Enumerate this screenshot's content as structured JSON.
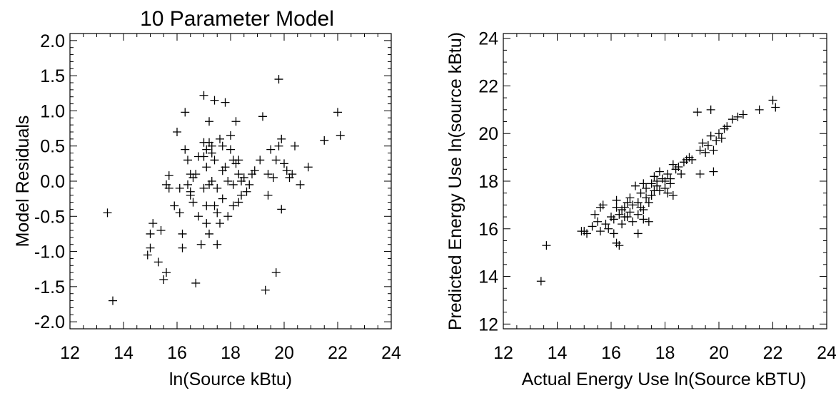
{
  "chart_data": [
    {
      "type": "scatter",
      "title": "10 Parameter Model",
      "xlabel": "ln(Source kBtu)",
      "ylabel": "Model Residuals",
      "xlim": [
        12,
        24
      ],
      "ylim": [
        -2.1,
        2.1
      ],
      "xticks": [
        12,
        14,
        16,
        18,
        20,
        22,
        24
      ],
      "xtick_labels": [
        "12",
        "14",
        "16",
        "18",
        "20",
        "22",
        "24"
      ],
      "yticks": [
        -2.0,
        -1.5,
        -1.0,
        -0.5,
        0.0,
        0.5,
        1.0,
        1.5,
        2.0
      ],
      "ytick_labels": [
        "-2.0",
        "-1.5",
        "-1.0",
        "-0.5",
        "0.0",
        "0.5",
        "1.0",
        "1.5",
        "2.0"
      ],
      "marker": "+",
      "x": [
        13.4,
        13.6,
        14.9,
        15.0,
        15.0,
        15.1,
        15.3,
        15.4,
        15.5,
        15.6,
        15.6,
        15.7,
        15.7,
        15.9,
        16.0,
        16.1,
        16.1,
        16.2,
        16.2,
        16.3,
        16.3,
        16.4,
        16.4,
        16.5,
        16.5,
        16.5,
        16.6,
        16.6,
        16.7,
        16.7,
        16.8,
        16.8,
        16.9,
        17.0,
        17.0,
        17.0,
        17.0,
        17.1,
        17.1,
        17.1,
        17.1,
        17.2,
        17.2,
        17.2,
        17.2,
        17.3,
        17.3,
        17.3,
        17.4,
        17.4,
        17.4,
        17.5,
        17.5,
        17.5,
        17.6,
        17.6,
        17.7,
        17.7,
        17.7,
        17.8,
        17.8,
        17.9,
        17.9,
        18.0,
        18.0,
        18.1,
        18.1,
        18.1,
        18.2,
        18.2,
        18.3,
        18.3,
        18.3,
        18.4,
        18.4,
        18.5,
        18.6,
        18.7,
        18.8,
        18.9,
        19.1,
        19.2,
        19.3,
        19.4,
        19.4,
        19.5,
        19.6,
        19.7,
        19.7,
        19.8,
        19.8,
        19.9,
        19.9,
        20.0,
        20.1,
        20.2,
        20.3,
        20.4,
        20.6,
        20.9,
        21.5,
        22.0,
        22.1
      ],
      "y": [
        -0.45,
        -1.7,
        -1.05,
        -0.95,
        -0.75,
        -0.6,
        -1.15,
        -0.7,
        -1.4,
        -1.3,
        -0.05,
        -0.1,
        0.08,
        -0.35,
        0.7,
        -0.1,
        -0.45,
        -0.75,
        -0.95,
        0.45,
        0.98,
        -0.05,
        0.3,
        -0.15,
        0.1,
        -0.2,
        -0.3,
        0.05,
        -1.45,
        0.1,
        -0.5,
        0.35,
        -0.9,
        0.35,
        0.55,
        1.22,
        -0.1,
        0.45,
        0.2,
        -0.35,
        -0.6,
        0.85,
        0.55,
        -0.05,
        -0.75,
        0.5,
        0.4,
        0.0,
        0.3,
        -0.35,
        1.15,
        -0.1,
        -0.45,
        -0.9,
        0.6,
        -0.6,
        -0.25,
        0.5,
        0.15,
        1.12,
        0.2,
        0.0,
        -0.5,
        0.65,
        0.45,
        0.3,
        -0.05,
        -0.35,
        0.25,
        0.85,
        0.3,
        -0.3,
        0.1,
        0.0,
        -0.2,
        0.05,
        -0.15,
        -0.05,
        0.1,
        0.15,
        0.3,
        0.92,
        -1.55,
        0.1,
        -0.2,
        0.45,
        0.05,
        0.3,
        -1.3,
        0.5,
        1.45,
        0.6,
        -0.4,
        0.25,
        0.15,
        0.05,
        0.1,
        0.5,
        -0.05,
        0.2,
        0.58,
        0.98,
        0.65
      ]
    },
    {
      "type": "scatter",
      "title": "",
      "xlabel": "Actual Energy Use ln(Source kBTU)",
      "ylabel": "Predicted Energy Use ln(source kBtu)",
      "xlim": [
        12,
        24
      ],
      "ylim": [
        11.8,
        24.2
      ],
      "xticks": [
        12,
        14,
        16,
        18,
        20,
        22,
        24
      ],
      "xtick_labels": [
        "12",
        "14",
        "16",
        "18",
        "20",
        "22",
        "24"
      ],
      "yticks": [
        12,
        14,
        16,
        18,
        20,
        22,
        24
      ],
      "ytick_labels": [
        "12",
        "14",
        "16",
        "18",
        "20",
        "22",
        "24"
      ],
      "marker": "+",
      "x": [
        13.4,
        13.6,
        14.9,
        15.0,
        15.1,
        15.3,
        15.4,
        15.5,
        15.6,
        15.6,
        15.7,
        15.8,
        15.9,
        16.0,
        16.1,
        16.1,
        16.2,
        16.2,
        16.2,
        16.3,
        16.3,
        16.4,
        16.4,
        16.5,
        16.5,
        16.6,
        16.6,
        16.7,
        16.7,
        16.8,
        16.8,
        16.9,
        17.0,
        17.0,
        17.0,
        17.1,
        17.1,
        17.2,
        17.2,
        17.2,
        17.3,
        17.3,
        17.4,
        17.4,
        17.5,
        17.5,
        17.6,
        17.6,
        17.7,
        17.7,
        17.8,
        17.8,
        17.9,
        18.0,
        18.0,
        18.1,
        18.1,
        18.2,
        18.2,
        18.3,
        18.3,
        18.4,
        18.5,
        18.6,
        18.7,
        18.8,
        18.9,
        19.0,
        19.2,
        19.3,
        19.3,
        19.4,
        19.5,
        19.6,
        19.7,
        19.7,
        19.8,
        19.8,
        19.9,
        20.0,
        20.1,
        20.2,
        20.3,
        20.5,
        20.7,
        20.9,
        21.5,
        22.0,
        22.1
      ],
      "y": [
        13.8,
        15.3,
        15.9,
        15.9,
        15.8,
        16.1,
        16.6,
        16.3,
        16.9,
        15.9,
        17.0,
        16.2,
        16.0,
        16.5,
        15.8,
        16.4,
        15.4,
        16.9,
        17.2,
        15.3,
        16.6,
        16.2,
        16.8,
        16.5,
        16.9,
        17.1,
        16.5,
        17.3,
        16.7,
        17.0,
        16.3,
        17.8,
        16.6,
        17.1,
        15.8,
        16.9,
        17.5,
        16.8,
        17.9,
        16.4,
        17.3,
        17.7,
        16.3,
        17.1,
        17.4,
        17.9,
        18.2,
        17.6,
        18.0,
        17.8,
        18.4,
        17.6,
        18.1,
        17.7,
        18.0,
        18.3,
        17.5,
        18.1,
        17.9,
        18.7,
        17.4,
        18.5,
        18.6,
        18.3,
        18.8,
        18.9,
        19.0,
        18.9,
        20.9,
        19.3,
        18.3,
        19.6,
        19.2,
        19.5,
        19.9,
        21.0,
        19.3,
        18.4,
        19.7,
        20.0,
        19.8,
        20.2,
        20.3,
        20.6,
        20.7,
        20.8,
        21.0,
        21.4,
        21.1
      ]
    }
  ]
}
